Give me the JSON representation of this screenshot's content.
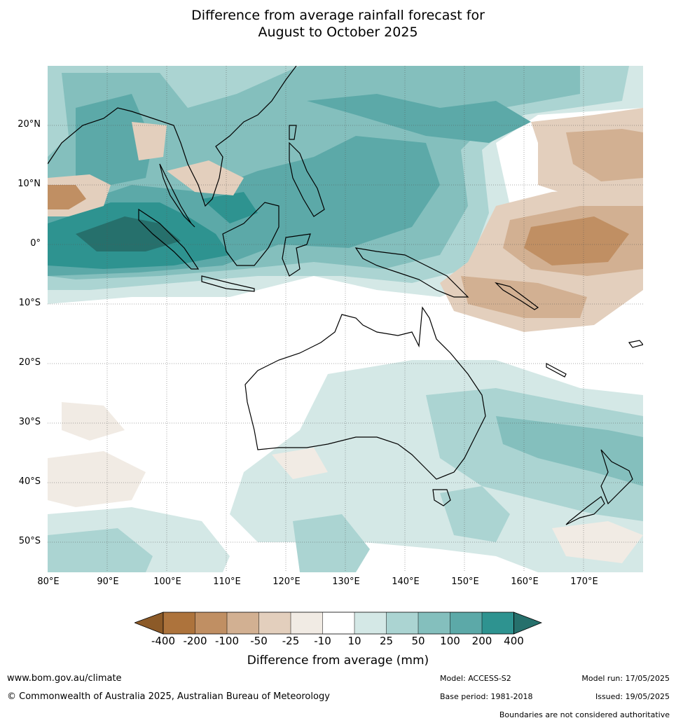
{
  "title_line1": "Difference from average rainfall forecast for",
  "title_line2": "August to October 2025",
  "colors": {
    "very_dry": "#8c5a28",
    "c_m400": "#ad733c",
    "c_m200": "#c08f63",
    "c_m100": "#d2b092",
    "c_m50": "#e3cfbd",
    "c_m25": "#f1ebe4",
    "c_neutral": "#ffffff",
    "c_p10": "#d4e8e6",
    "c_p25": "#abd4d2",
    "c_p50": "#84bfbd",
    "c_p100": "#5ca9a8",
    "c_p200": "#2e9390",
    "very_wet": "#26706c",
    "coast": "#000000",
    "border": "#888888"
  },
  "map": {
    "lat_labels": [
      "20°N",
      "10°N",
      "0°",
      "10°S",
      "20°S",
      "30°S",
      "40°S",
      "50°S"
    ],
    "lon_labels": [
      "80°E",
      "90°E",
      "100°E",
      "110°E",
      "120°E",
      "130°E",
      "140°E",
      "150°E",
      "160°E",
      "170°E"
    ]
  },
  "colorbar": {
    "ticks": [
      "-400",
      "-200",
      "-100",
      "-50",
      "-25",
      "-10",
      "10",
      "25",
      "50",
      "100",
      "200",
      "400"
    ],
    "title": "Difference from average (mm)"
  },
  "footer": {
    "website": "www.bom.gov.au/climate",
    "copyright": "© Commonwealth of Australia 2025, Australian Bureau of Meteorology",
    "model": "Model: ACCESS-S2",
    "base_period": "Base period: 1981-2018",
    "model_run": "Model run: 17/05/2025",
    "issued": "Issued: 19/05/2025",
    "boundaries_note": "Boundaries are not considered authoritative"
  }
}
